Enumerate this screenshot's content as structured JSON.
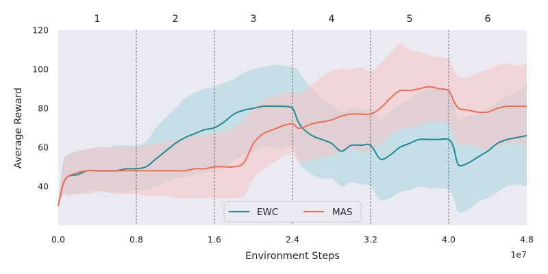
{
  "chart_data": {
    "type": "line",
    "title": "",
    "xlabel": "Environment Steps",
    "ylabel": "Average Reward",
    "x_offset_label": "1e7",
    "xlim": [
      0,
      4.8
    ],
    "ylim": [
      20,
      120
    ],
    "xticks": [
      "0.0",
      "0.8",
      "1.6",
      "2.4",
      "3.2",
      "4.0",
      "4.8"
    ],
    "yticks": [
      "40",
      "60",
      "80",
      "100",
      "120"
    ],
    "task_boundaries": [
      0.8,
      1.6,
      2.4,
      3.2,
      4.0
    ],
    "task_labels": [
      "1",
      "2",
      "3",
      "4",
      "5",
      "6"
    ],
    "legend_position": "bottom-center",
    "grid": false,
    "background_color": "#eaeaf2",
    "x": [
      0,
      0.05,
      0.1,
      0.2,
      0.3,
      0.4,
      0.5,
      0.6,
      0.7,
      0.8,
      0.9,
      1.0,
      1.1,
      1.2,
      1.3,
      1.4,
      1.5,
      1.6,
      1.7,
      1.8,
      1.9,
      2.0,
      2.1,
      2.2,
      2.3,
      2.4,
      2.45,
      2.5,
      2.6,
      2.7,
      2.8,
      2.9,
      3.0,
      3.1,
      3.2,
      3.3,
      3.4,
      3.5,
      3.6,
      3.7,
      3.8,
      3.9,
      4.0,
      4.05,
      4.1,
      4.2,
      4.3,
      4.4,
      4.5,
      4.6,
      4.7,
      4.8
    ],
    "series": [
      {
        "name": "EWC",
        "color": "#1a8a94",
        "band_color": "#a8d3da",
        "values": [
          30,
          41,
          45,
          46,
          48,
          48,
          48,
          48,
          49,
          49,
          50,
          54,
          58,
          62,
          65,
          67,
          69,
          70,
          73,
          77,
          79,
          80,
          81,
          81,
          81,
          80,
          74,
          70,
          66,
          64,
          62,
          58,
          61,
          61,
          61,
          54,
          56,
          60,
          62,
          64,
          64,
          64,
          64,
          60,
          51,
          52,
          55,
          58,
          62,
          64,
          65,
          66
        ],
        "upper": [
          31,
          52,
          56,
          58,
          59,
          60,
          60,
          61,
          61,
          61,
          63,
          70,
          75,
          80,
          85,
          88,
          90,
          91,
          93,
          95,
          98,
          100,
          101,
          102,
          102,
          101,
          100,
          96,
          90,
          85,
          82,
          78,
          80,
          79,
          80,
          74,
          78,
          82,
          85,
          88,
          90,
          90,
          89,
          84,
          75,
          76,
          78,
          80,
          83,
          86,
          88,
          93
        ],
        "lower": [
          29,
          36,
          36,
          36,
          37,
          38,
          37,
          37,
          37,
          38,
          38,
          40,
          42,
          44,
          45,
          46,
          47,
          48,
          50,
          53,
          56,
          58,
          60,
          60,
          59,
          60,
          54,
          50,
          46,
          44,
          44,
          40,
          42,
          41,
          40,
          33,
          34,
          37,
          38,
          40,
          39,
          39,
          38,
          34,
          27,
          28,
          32,
          34,
          37,
          40,
          41,
          40
        ]
      },
      {
        "name": "MAS",
        "color": "#f26b50",
        "band_color": "#f5c4c4",
        "values": [
          30,
          41,
          45,
          47,
          48,
          48,
          48,
          48,
          48,
          48,
          48,
          48,
          48,
          48,
          48,
          49,
          49,
          50,
          50,
          50,
          52,
          62,
          67,
          69,
          71,
          72,
          70,
          70,
          72,
          73,
          74,
          76,
          77,
          77,
          77,
          80,
          85,
          89,
          89,
          90,
          91,
          90,
          89,
          84,
          80,
          79,
          78,
          78,
          80,
          81,
          81,
          81
        ],
        "upper": [
          31,
          52,
          56,
          58,
          59,
          60,
          60,
          60,
          60,
          60,
          61,
          62,
          63,
          64,
          65,
          66,
          66,
          67,
          68,
          70,
          74,
          80,
          84,
          86,
          88,
          88,
          87,
          88,
          92,
          96,
          99,
          100,
          100,
          101,
          99,
          103,
          108,
          113,
          110,
          109,
          107,
          106,
          105,
          100,
          96,
          96,
          98,
          100,
          102,
          103,
          102,
          103
        ],
        "lower": [
          29,
          36,
          35,
          36,
          36,
          37,
          37,
          36,
          36,
          36,
          35,
          35,
          35,
          34,
          34,
          34,
          34,
          34,
          34,
          34,
          35,
          44,
          49,
          52,
          55,
          57,
          53,
          52,
          54,
          55,
          56,
          58,
          59,
          58,
          59,
          62,
          66,
          69,
          70,
          71,
          73,
          73,
          72,
          66,
          62,
          61,
          60,
          58,
          60,
          62,
          62,
          61
        ]
      }
    ]
  }
}
